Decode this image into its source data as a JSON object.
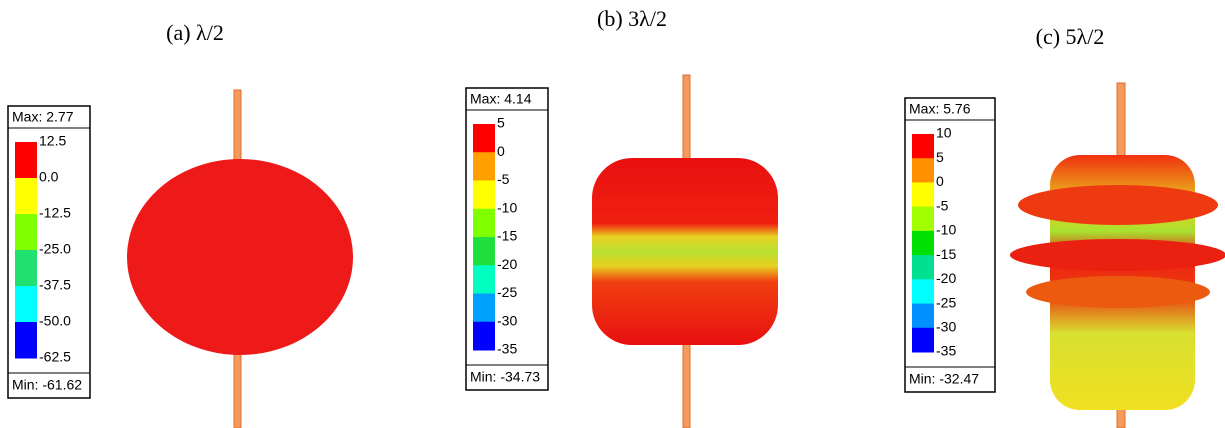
{
  "panels": [
    {
      "caption": "(a) λ/2",
      "max": "Max: 2.77",
      "min": "Min: -61.62",
      "scale": [
        "12.5",
        "0.0",
        "-12.5",
        "-25.0",
        "-37.5",
        "-50.0",
        "-62.5"
      ]
    },
    {
      "caption": "(b) 3λ/2",
      "max": "Max: 4.14",
      "min": "Min: -34.73",
      "scale": [
        "5",
        "0",
        "-5",
        "-10",
        "-15",
        "-20",
        "-25",
        "-30",
        "-35"
      ]
    },
    {
      "caption": "(c) 5λ/2",
      "max": "Max: 5.76",
      "min": "Min: -32.47",
      "scale": [
        "10",
        "5",
        "0",
        "-5",
        "-10",
        "-15",
        "-20",
        "-25",
        "-30",
        "-35"
      ]
    }
  ]
}
